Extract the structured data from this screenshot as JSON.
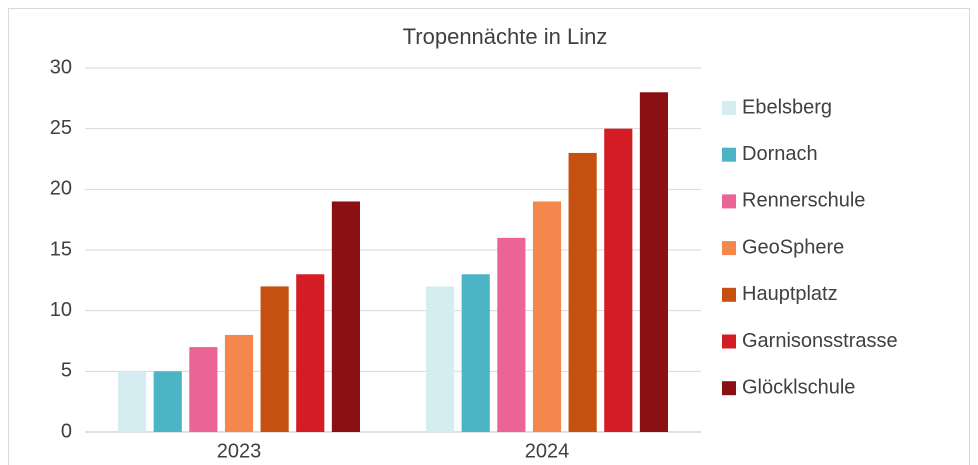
{
  "chart_data": {
    "type": "bar",
    "title": "Tropennächte in Linz",
    "categories": [
      "2023",
      "2024"
    ],
    "series": [
      {
        "name": "Ebelsberg",
        "color": "#d5ecf0",
        "values": [
          5,
          12
        ]
      },
      {
        "name": "Dornach",
        "color": "#4bb5c6",
        "values": [
          5,
          13
        ]
      },
      {
        "name": "Rennerschule",
        "color": "#ea6596",
        "values": [
          7,
          16
        ]
      },
      {
        "name": "GeoSphere",
        "color": "#f4874b",
        "values": [
          8,
          19
        ]
      },
      {
        "name": "Hauptplatz",
        "color": "#c4510f",
        "values": [
          12,
          23
        ]
      },
      {
        "name": "Garnisonsstrasse",
        "color": "#d41c24",
        "values": [
          13,
          25
        ]
      },
      {
        "name": "Glöcklschule",
        "color": "#8b1014",
        "values": [
          19,
          28
        ]
      }
    ],
    "ylim": [
      0,
      30
    ],
    "yticks": [
      0,
      5,
      10,
      15,
      20,
      25,
      30
    ],
    "grid": true,
    "legend": "right"
  }
}
